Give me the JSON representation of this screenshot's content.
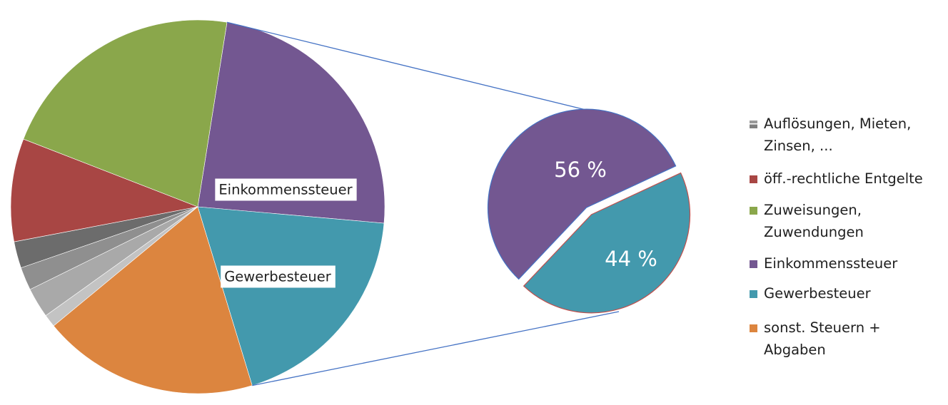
{
  "chart_data": [
    {
      "type": "pie",
      "slices": [
        {
          "label": "Einkommenssteuer",
          "value": 23.9,
          "color": "#735791"
        },
        {
          "label": "Gewerbesteuer",
          "value": 18.9,
          "color": "#4399ad"
        },
        {
          "label": "sonst. Steuern + Abgaben",
          "value": 18.7,
          "color": "#dc853f"
        },
        {
          "label": "Auflösungen, Mieten, Zinsen, ...",
          "value": 1.1,
          "color": "#c3c3c3"
        },
        {
          "label": "Auflösungen, Mieten, Zinsen, ...",
          "value": 2.6,
          "color": "#a9a9a9"
        },
        {
          "label": "Auflösungen, Mieten, Zinsen, ...",
          "value": 2.0,
          "color": "#8f8f8f"
        },
        {
          "label": "Auflösungen, Mieten, Zinsen, ...",
          "value": 2.3,
          "color": "#6c6c6c"
        },
        {
          "label": "öff.-rechtliche Entgelte",
          "value": 8.9,
          "color": "#a84644"
        },
        {
          "label": "Zuweisungen, Zuwendungen",
          "value": 21.6,
          "color": "#8aa74b"
        }
      ],
      "data_labels": [
        "Einkommenssteuer",
        "Gewerbesteuer"
      ]
    },
    {
      "type": "pie",
      "slices": [
        {
          "label": "Einkommenssteuer",
          "value": 56,
          "color": "#735791",
          "data_label": "56 %"
        },
        {
          "label": "Gewerbesteuer",
          "value": 44,
          "color": "#4399ad",
          "data_label": "44 %"
        }
      ]
    }
  ],
  "legend": [
    {
      "label": "Auflösungen, Mieten,",
      "label2": "Zinsen, ...",
      "color": "#7f7f7f"
    },
    {
      "label": "öff.-rechtliche Entgelte",
      "color": "#a84644"
    },
    {
      "label": "Zuweisungen,",
      "label2": "Zuwendungen",
      "color": "#8aa74b"
    },
    {
      "label": "Einkommenssteuer",
      "color": "#735791"
    },
    {
      "label": "Gewerbesteuer",
      "color": "#4399ad"
    },
    {
      "label": "sonst. Steuern +",
      "label2": "Abgaben",
      "color": "#dc853f"
    }
  ],
  "colors": {
    "connector": "#4472c4",
    "secondary_outline": "#4472c4",
    "secondary_teal_outline": "#c0504d"
  }
}
